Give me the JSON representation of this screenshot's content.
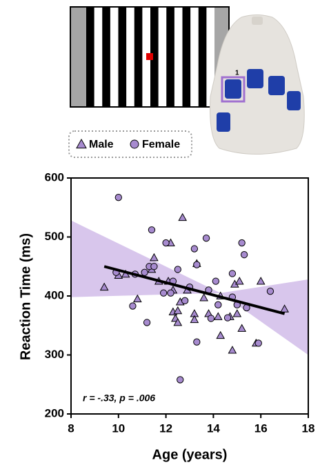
{
  "chart_data": {
    "type": "scatter",
    "xlabel": "Age (years)",
    "ylabel": "Reaction Time (ms)",
    "annotation": "r = -.33, p = .006",
    "key_label": "1",
    "xlim": [
      8,
      18
    ],
    "xticks": [
      8,
      10,
      12,
      14,
      16,
      18
    ],
    "ylim": [
      200,
      600
    ],
    "yticks": [
      200,
      300,
      400,
      500,
      600
    ],
    "series": [
      {
        "name": "Male",
        "marker": "triangle",
        "color": "#a78bcf",
        "x": [
          9.4,
          10.0,
          10.3,
          10.8,
          11.4,
          11.5,
          11.7,
          12.1,
          12.2,
          12.3,
          12.3,
          12.4,
          12.5,
          12.5,
          12.6,
          12.7,
          12.9,
          13.2,
          13.2,
          13.3,
          13.6,
          13.8,
          14.2,
          14.3,
          14.3,
          14.7,
          14.8,
          14.9,
          15.0,
          15.1,
          15.2,
          15.8,
          16.0,
          17.0
        ],
        "values": [
          415,
          435,
          437,
          395,
          445,
          465,
          425,
          425,
          490,
          373,
          410,
          362,
          375,
          355,
          390,
          533,
          410,
          370,
          360,
          455,
          397,
          370,
          365,
          333,
          400,
          365,
          308,
          420,
          370,
          425,
          345,
          320,
          425,
          378
        ]
      },
      {
        "name": "Female",
        "marker": "circle",
        "color": "#a78bcf",
        "x": [
          10.0,
          9.9,
          10.6,
          10.7,
          11.1,
          11.2,
          11.3,
          11.4,
          11.5,
          11.9,
          12.0,
          12.2,
          12.3,
          12.5,
          12.6,
          12.8,
          13.0,
          13.2,
          13.3,
          13.3,
          13.7,
          13.8,
          13.9,
          14.1,
          14.2,
          14.6,
          14.8,
          14.8,
          15.0,
          15.2,
          15.3,
          15.4,
          15.9,
          16.4
        ],
        "values": [
          567,
          440,
          383,
          437,
          440,
          355,
          450,
          512,
          450,
          405,
          490,
          405,
          425,
          445,
          258,
          392,
          415,
          480,
          453,
          322,
          498,
          410,
          362,
          425,
          385,
          363,
          438,
          398,
          385,
          490,
          470,
          380,
          320,
          408
        ]
      }
    ],
    "fit": {
      "x": [
        9.4,
        17
      ],
      "values": [
        450,
        370
      ],
      "color": "#000000"
    },
    "band": {
      "x": [
        8,
        14.3,
        18
      ],
      "upper": [
        528,
        405,
        428
      ],
      "lower": [
        398,
        405,
        300
      ],
      "color": "#d8c6ec"
    }
  }
}
